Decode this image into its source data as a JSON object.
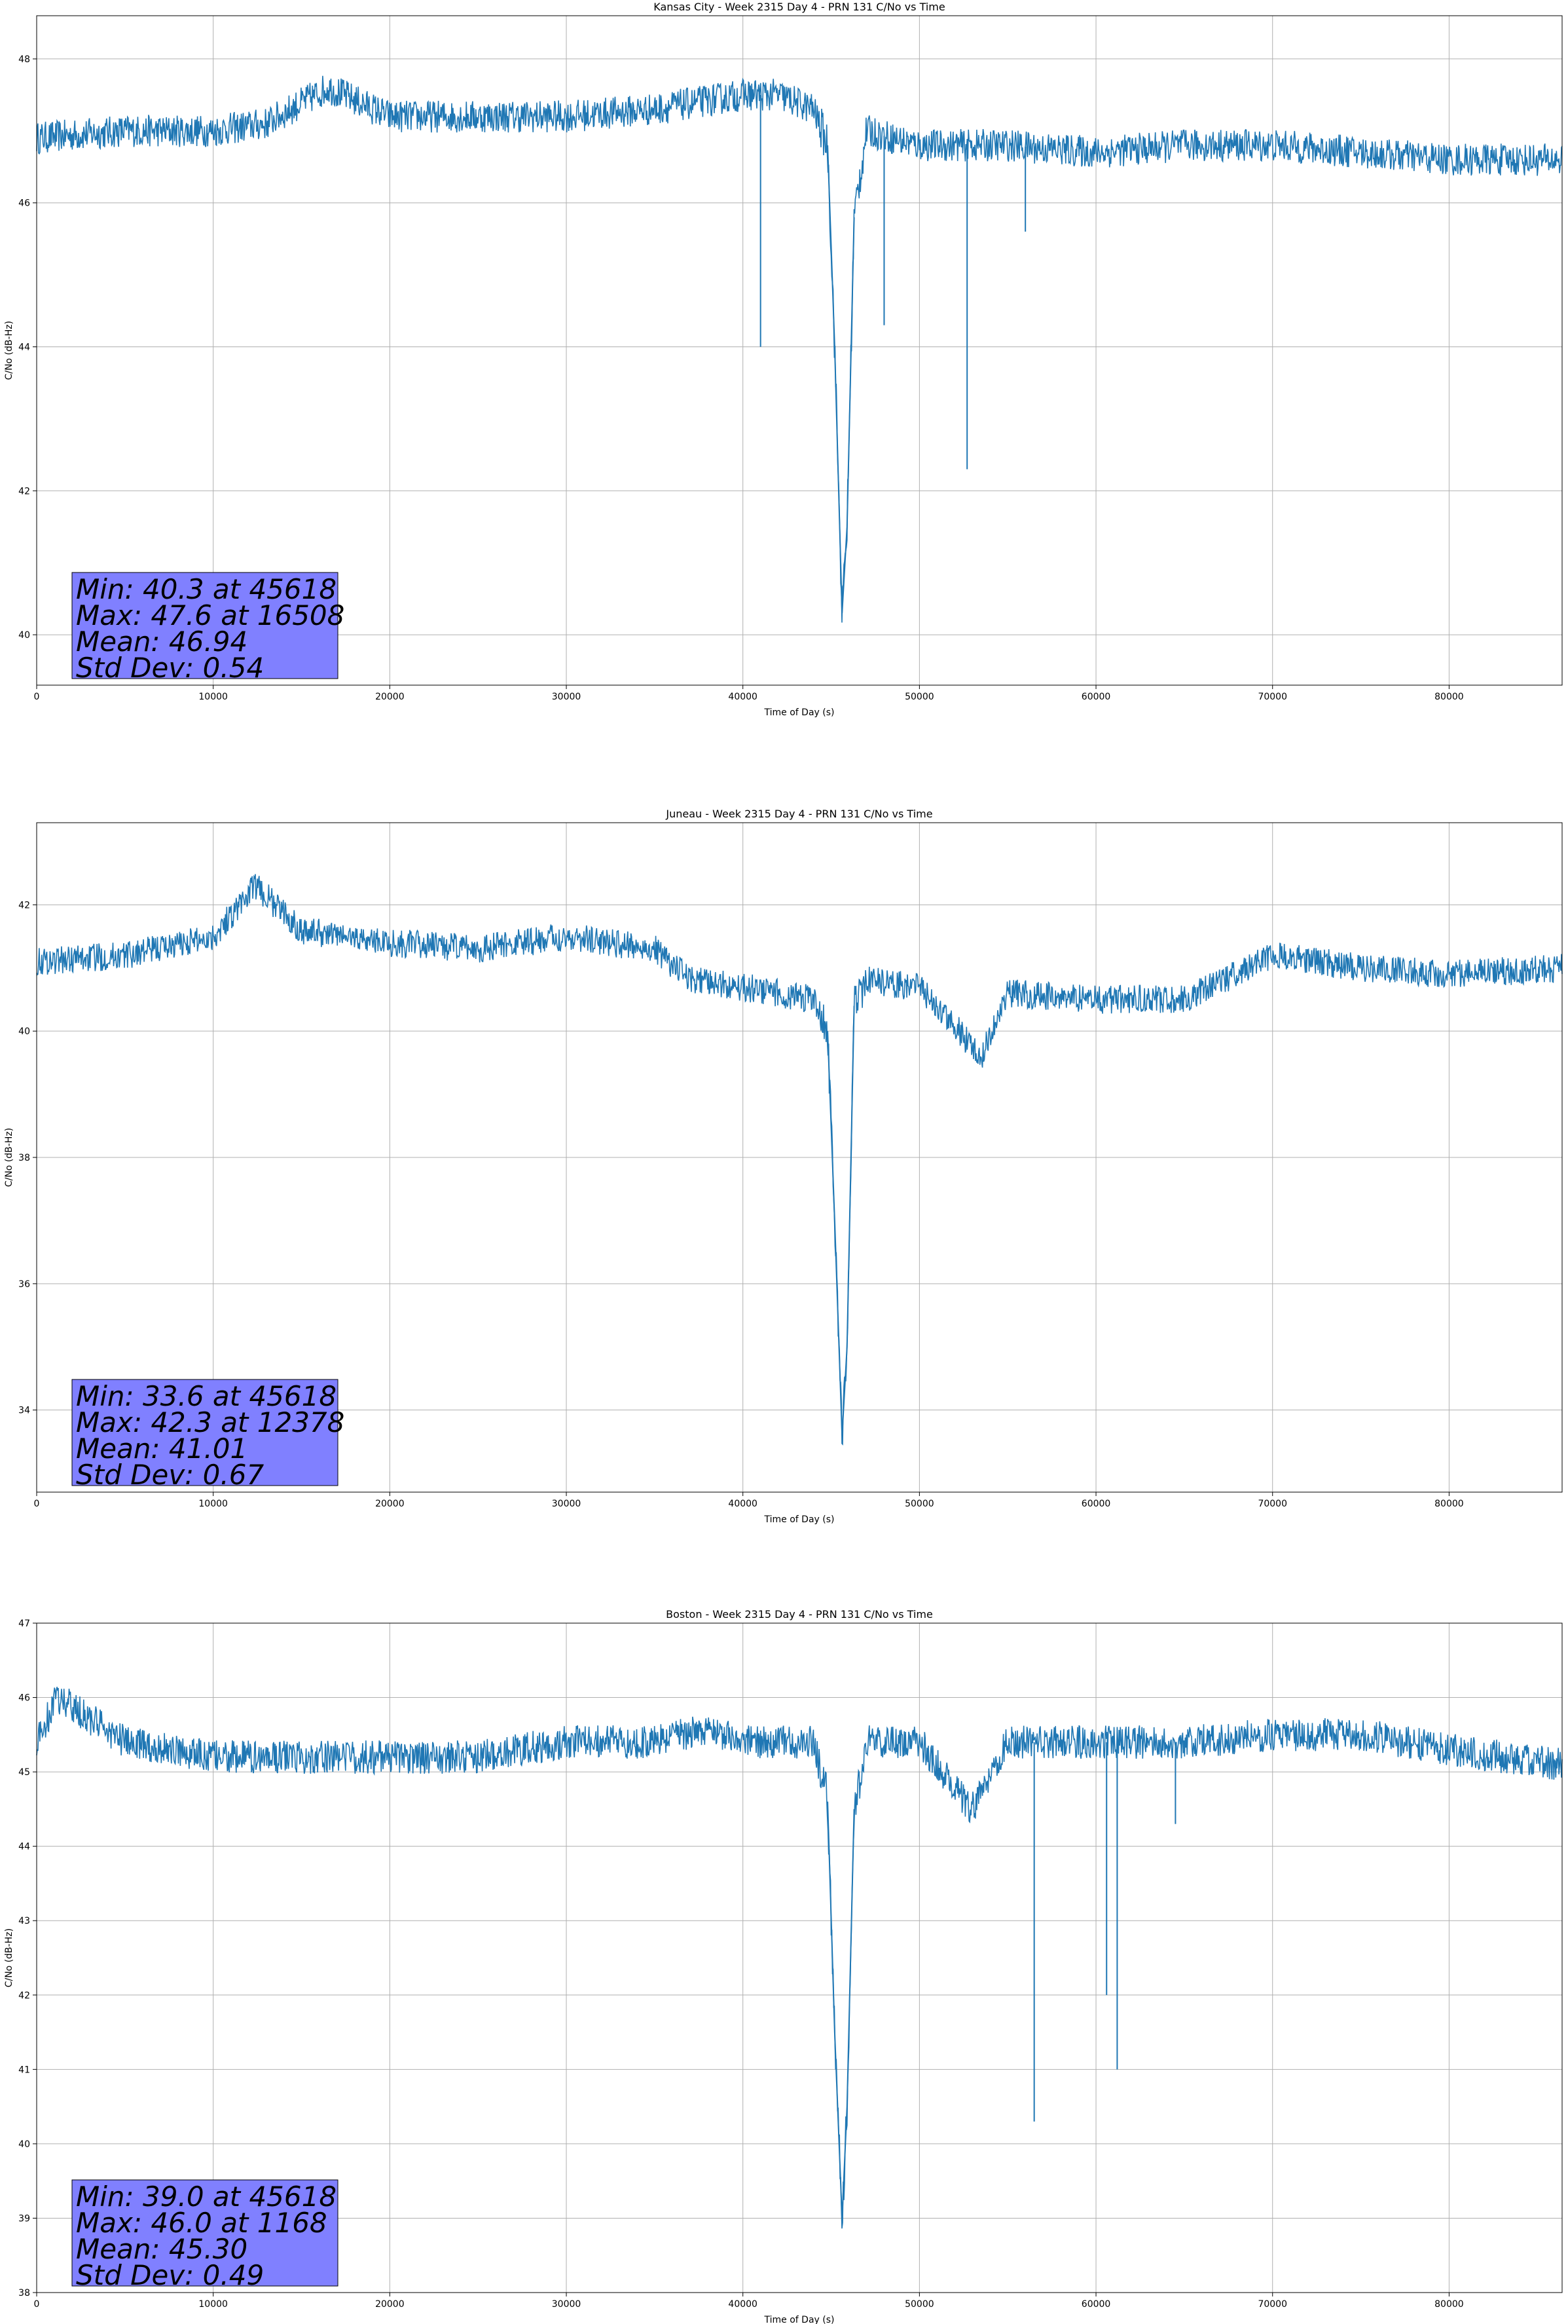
{
  "figure_title": "Week 2315 Day 4 - PRN 131 C/No vs Time",
  "chart_data": [
    {
      "type": "line",
      "title": "Kansas City - Week 2315 Day 4 - PRN 131 C/No vs Time",
      "xlabel": "Time of Day (s)",
      "ylabel": "C/No (dB-Hz)",
      "xlim": [
        0,
        86400
      ],
      "ylim": [
        39.3,
        48.6
      ],
      "xticks": [
        0,
        10000,
        20000,
        30000,
        40000,
        50000,
        60000,
        70000,
        80000
      ],
      "yticks": [
        40,
        42,
        44,
        46,
        48
      ],
      "grid": true,
      "line_color": "#1f77b4",
      "stats": [
        "Min: 40.3 at 45618",
        "Max: 47.6 at 16508",
        "Mean: 46.94",
        "Std Dev: 0.54"
      ],
      "stats_box_color": "#8080ff",
      "series": [
        {
          "name": "C/No",
          "x": [
            0,
            5000,
            10000,
            13000,
            16508,
            20000,
            30000,
            35000,
            40000,
            42000,
            44000,
            44800,
            45200,
            45618,
            45900,
            46300,
            47000,
            50000,
            55000,
            60000,
            65000,
            70000,
            75000,
            80000,
            86400
          ],
          "y": [
            46.9,
            47.0,
            47.0,
            47.1,
            47.6,
            47.2,
            47.2,
            47.3,
            47.5,
            47.5,
            47.3,
            46.8,
            44.0,
            40.3,
            41.5,
            45.8,
            47.0,
            46.8,
            46.8,
            46.7,
            46.8,
            46.8,
            46.7,
            46.6,
            46.6
          ]
        }
      ],
      "spikes": [
        {
          "x": 41000,
          "y": 44.0
        },
        {
          "x": 48000,
          "y": 44.3
        },
        {
          "x": 52700,
          "y": 42.3
        },
        {
          "x": 56000,
          "y": 45.6
        }
      ]
    },
    {
      "type": "line",
      "title": "Juneau - Week 2315 Day 4 - PRN 131 C/No vs Time",
      "xlabel": "Time of Day (s)",
      "ylabel": "C/No (dB-Hz)",
      "xlim": [
        0,
        86400
      ],
      "ylim": [
        32.7,
        43.3
      ],
      "xticks": [
        0,
        10000,
        20000,
        30000,
        40000,
        50000,
        60000,
        70000,
        80000
      ],
      "yticks": [
        34,
        36,
        38,
        40,
        42
      ],
      "grid": true,
      "line_color": "#1f77b4",
      "stats": [
        "Min: 33.6 at 45618",
        "Max: 42.3 at 12378",
        "Mean: 41.01",
        "Std Dev: 0.67"
      ],
      "stats_box_color": "#8080ff",
      "series": [
        {
          "name": "C/No",
          "x": [
            0,
            5000,
            10000,
            12378,
            15000,
            20000,
            25000,
            30000,
            35000,
            37000,
            40000,
            44000,
            44800,
            45200,
            45618,
            45900,
            46300,
            47000,
            50000,
            53500,
            55000,
            60000,
            65000,
            70000,
            75000,
            80000,
            86400
          ],
          "y": [
            41.1,
            41.2,
            41.5,
            42.3,
            41.6,
            41.4,
            41.3,
            41.5,
            41.3,
            40.8,
            40.7,
            40.5,
            40.0,
            37.0,
            33.6,
            35.0,
            40.4,
            40.8,
            40.7,
            39.6,
            40.6,
            40.5,
            40.5,
            41.2,
            41.0,
            40.9,
            41.0
          ]
        }
      ],
      "spikes": []
    },
    {
      "type": "line",
      "title": "Boston - Week 2315 Day 4 - PRN 131 C/No vs Time",
      "xlabel": "Time of Day (s)",
      "ylabel": "C/No (dB-Hz)",
      "xlim": [
        0,
        86400
      ],
      "ylim": [
        38,
        47
      ],
      "xticks": [
        0,
        10000,
        20000,
        30000,
        40000,
        50000,
        60000,
        70000,
        80000
      ],
      "yticks": [
        38,
        39,
        40,
        41,
        42,
        43,
        44,
        45,
        46,
        47
      ],
      "grid": true,
      "line_color": "#1f77b4",
      "stats": [
        "Min: 39.0 at 45618",
        "Max: 46.0 at 1168",
        "Mean: 45.30",
        "Std Dev: 0.49"
      ],
      "stats_box_color": "#8080ff",
      "series": [
        {
          "name": "C/No",
          "x": [
            0,
            1168,
            5000,
            10000,
            15000,
            20000,
            25000,
            30000,
            35000,
            38000,
            40000,
            44000,
            44800,
            45200,
            45618,
            45900,
            46300,
            47000,
            50000,
            53000,
            55000,
            60000,
            65000,
            70000,
            75000,
            80000,
            86400
          ],
          "y": [
            45.4,
            46.0,
            45.4,
            45.2,
            45.2,
            45.2,
            45.2,
            45.4,
            45.4,
            45.6,
            45.4,
            45.4,
            44.6,
            41.5,
            39.0,
            40.5,
            44.5,
            45.4,
            45.4,
            44.5,
            45.4,
            45.4,
            45.4,
            45.5,
            45.5,
            45.3,
            45.1
          ]
        }
      ],
      "spikes": [
        {
          "x": 56500,
          "y": 40.3
        },
        {
          "x": 60600,
          "y": 42.0
        },
        {
          "x": 61200,
          "y": 41.0
        },
        {
          "x": 64500,
          "y": 44.3
        }
      ]
    }
  ]
}
